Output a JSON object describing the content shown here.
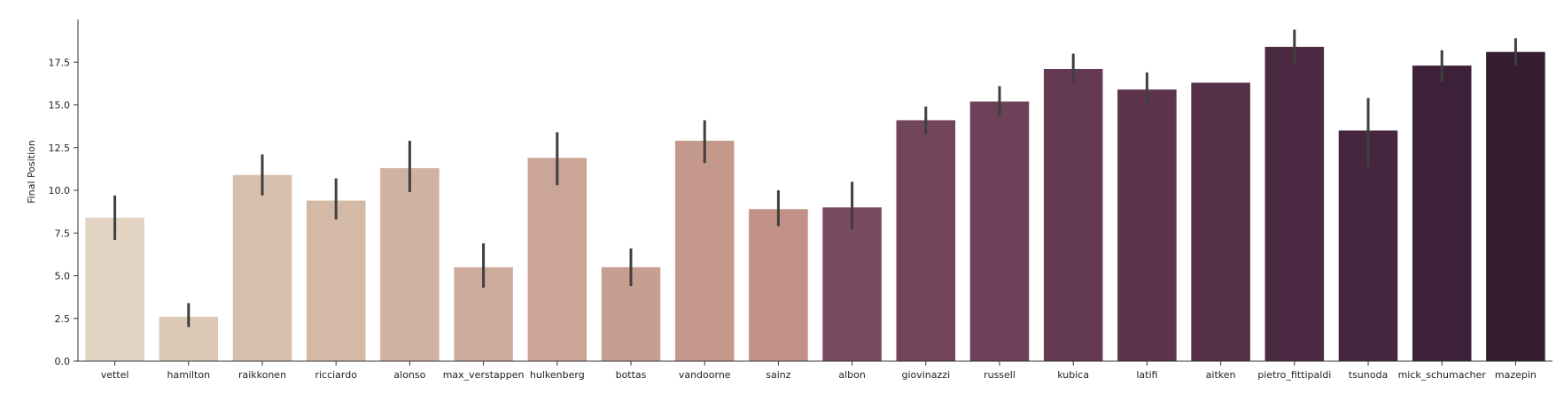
{
  "chart_data": {
    "type": "bar",
    "title": "",
    "xlabel": "",
    "ylabel": "Final Position",
    "ylim": [
      0,
      20
    ],
    "yticks": [
      "0.0",
      "2.5",
      "5.0",
      "7.5",
      "10.0",
      "12.5",
      "15.0",
      "17.5"
    ],
    "grid": false,
    "categories": [
      "vettel",
      "hamilton",
      "raikkonen",
      "ricciardo",
      "alonso",
      "max_verstappen",
      "hulkenberg",
      "bottas",
      "vandoorne",
      "sainz",
      "albon",
      "giovinazzi",
      "russell",
      "kubica",
      "latifi",
      "aitken",
      "pietro_fittipaldi",
      "tsunoda",
      "mick_schumacher",
      "mazepin"
    ],
    "values": [
      8.4,
      2.6,
      10.9,
      9.4,
      11.3,
      5.5,
      11.9,
      5.5,
      12.9,
      8.9,
      9.0,
      14.1,
      15.2,
      17.1,
      15.9,
      16.3,
      18.4,
      13.5,
      17.3,
      18.1
    ],
    "error_low": [
      7.1,
      2.0,
      9.7,
      8.3,
      9.9,
      4.3,
      10.3,
      4.4,
      11.6,
      7.9,
      7.7,
      13.3,
      14.3,
      16.3,
      15.0,
      16.3,
      17.3,
      11.4,
      16.3,
      17.3
    ],
    "error_high": [
      9.7,
      3.4,
      12.1,
      10.7,
      12.9,
      6.9,
      13.4,
      6.6,
      14.1,
      10.0,
      10.5,
      14.9,
      16.1,
      18.0,
      16.9,
      16.3,
      19.4,
      15.4,
      18.2,
      18.9
    ],
    "colors": [
      "#e2d3c2",
      "#ddcab6",
      "#d8c0ad",
      "#d4b9a6",
      "#d1b2a0",
      "#ceac9c",
      "#cba596",
      "#c89e91",
      "#c5988c",
      "#c19188",
      "#7a4a60",
      "#734559",
      "#6d4157",
      "#633a52",
      "#5c354c",
      "#552f48",
      "#4d2a43",
      "#46263e",
      "#3c2138",
      "#341d31"
    ]
  }
}
